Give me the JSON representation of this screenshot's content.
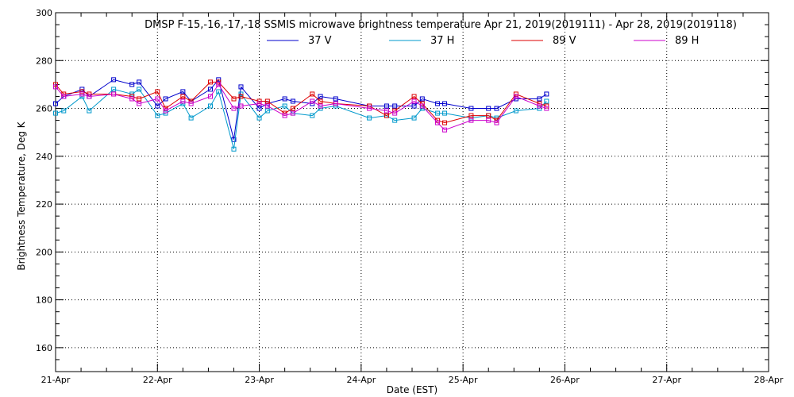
{
  "chart_data": {
    "type": "line",
    "title": "DMSP F-15,-16,-17,-18 SSMIS microwave brightness temperature Apr 21, 2019(2019111) - Apr 28, 2019(2019118)",
    "xlabel": "Date (EST)",
    "ylabel": "Brightness Temperature, Deg K",
    "ylim": [
      150,
      300
    ],
    "xlim": [
      0,
      7
    ],
    "grid": true,
    "legend_position": "top-center",
    "x_ticks": [
      {
        "value": 0,
        "label": "21-Apr"
      },
      {
        "value": 1,
        "label": "22-Apr"
      },
      {
        "value": 2,
        "label": "23-Apr"
      },
      {
        "value": 3,
        "label": "24-Apr"
      },
      {
        "value": 4,
        "label": "25-Apr"
      },
      {
        "value": 5,
        "label": "26-Apr"
      },
      {
        "value": 6,
        "label": "27-Apr"
      },
      {
        "value": 7,
        "label": "28-Apr"
      }
    ],
    "y_ticks": [
      {
        "value": 160,
        "label": "160"
      },
      {
        "value": 180,
        "label": "180"
      },
      {
        "value": 200,
        "label": "200"
      },
      {
        "value": 220,
        "label": "220"
      },
      {
        "value": 240,
        "label": "240"
      },
      {
        "value": 260,
        "label": "260"
      },
      {
        "value": 280,
        "label": "280"
      },
      {
        "value": 300,
        "label": "300"
      }
    ],
    "series": [
      {
        "name": "37 V",
        "color": "#0000cc",
        "points": [
          [
            0.0,
            262
          ],
          [
            0.08,
            265
          ],
          [
            0.26,
            268
          ],
          [
            0.33,
            265
          ],
          [
            0.57,
            272
          ],
          [
            0.75,
            270
          ],
          [
            0.82,
            271
          ],
          [
            1.0,
            261
          ],
          [
            1.08,
            264
          ],
          [
            1.25,
            267
          ],
          [
            1.33,
            263
          ],
          [
            1.52,
            268
          ],
          [
            1.6,
            272
          ],
          [
            1.75,
            247
          ],
          [
            1.82,
            269
          ],
          [
            2.0,
            260
          ],
          [
            2.08,
            262
          ],
          [
            2.25,
            264
          ],
          [
            2.33,
            263
          ],
          [
            2.52,
            262
          ],
          [
            2.6,
            265
          ],
          [
            2.75,
            264
          ],
          [
            3.08,
            261
          ],
          [
            3.25,
            261
          ],
          [
            3.33,
            261
          ],
          [
            3.52,
            261
          ],
          [
            3.6,
            264
          ],
          [
            3.75,
            262
          ],
          [
            3.82,
            262
          ],
          [
            4.08,
            260
          ],
          [
            4.25,
            260
          ],
          [
            4.33,
            260
          ],
          [
            4.52,
            264
          ],
          [
            4.75,
            264
          ],
          [
            4.82,
            266
          ]
        ]
      },
      {
        "name": "37 H",
        "color": "#0099cc",
        "points": [
          [
            0.0,
            258
          ],
          [
            0.08,
            259
          ],
          [
            0.26,
            265
          ],
          [
            0.33,
            259
          ],
          [
            0.57,
            268
          ],
          [
            0.75,
            266
          ],
          [
            0.82,
            268
          ],
          [
            1.0,
            257
          ],
          [
            1.08,
            258
          ],
          [
            1.25,
            262
          ],
          [
            1.33,
            256
          ],
          [
            1.52,
            261
          ],
          [
            1.6,
            267
          ],
          [
            1.75,
            243
          ],
          [
            1.82,
            266
          ],
          [
            2.0,
            256
          ],
          [
            2.08,
            259
          ],
          [
            2.25,
            261
          ],
          [
            2.33,
            258
          ],
          [
            2.52,
            257
          ],
          [
            2.6,
            260
          ],
          [
            2.75,
            261
          ],
          [
            3.08,
            256
          ],
          [
            3.25,
            257
          ],
          [
            3.33,
            255
          ],
          [
            3.52,
            256
          ],
          [
            3.6,
            260
          ],
          [
            3.75,
            258
          ],
          [
            3.82,
            258
          ],
          [
            4.08,
            256
          ],
          [
            4.25,
            257
          ],
          [
            4.33,
            256
          ],
          [
            4.52,
            259
          ],
          [
            4.75,
            260
          ],
          [
            4.82,
            263
          ]
        ]
      },
      {
        "name": "89 V",
        "color": "#dd0000",
        "points": [
          [
            0.0,
            270
          ],
          [
            0.08,
            266
          ],
          [
            0.26,
            267
          ],
          [
            0.33,
            266
          ],
          [
            0.57,
            266
          ],
          [
            0.75,
            265
          ],
          [
            0.82,
            264
          ],
          [
            1.0,
            267
          ],
          [
            1.08,
            260
          ],
          [
            1.25,
            265
          ],
          [
            1.33,
            263
          ],
          [
            1.52,
            271
          ],
          [
            1.6,
            271
          ],
          [
            1.75,
            264
          ],
          [
            1.82,
            265
          ],
          [
            2.0,
            263
          ],
          [
            2.08,
            263
          ],
          [
            2.25,
            258
          ],
          [
            2.33,
            260
          ],
          [
            2.52,
            266
          ],
          [
            2.6,
            263
          ],
          [
            2.75,
            262
          ],
          [
            3.08,
            261
          ],
          [
            3.25,
            257
          ],
          [
            3.33,
            259
          ],
          [
            3.52,
            265
          ],
          [
            3.6,
            262
          ],
          [
            3.75,
            255
          ],
          [
            3.82,
            254
          ],
          [
            4.08,
            257
          ],
          [
            4.25,
            257
          ],
          [
            4.33,
            255
          ],
          [
            4.52,
            266
          ],
          [
            4.75,
            262
          ],
          [
            4.82,
            261
          ]
        ]
      },
      {
        "name": "89 H",
        "color": "#cc00cc",
        "points": [
          [
            0.0,
            269
          ],
          [
            0.08,
            265
          ],
          [
            0.26,
            266
          ],
          [
            0.33,
            265
          ],
          [
            0.57,
            266
          ],
          [
            0.75,
            264
          ],
          [
            0.82,
            262
          ],
          [
            1.0,
            264
          ],
          [
            1.08,
            259
          ],
          [
            1.25,
            263
          ],
          [
            1.33,
            262
          ],
          [
            1.52,
            265
          ],
          [
            1.6,
            270
          ],
          [
            1.75,
            260
          ],
          [
            1.82,
            261
          ],
          [
            2.0,
            262
          ],
          [
            2.08,
            261
          ],
          [
            2.25,
            257
          ],
          [
            2.33,
            258
          ],
          [
            2.52,
            263
          ],
          [
            2.6,
            261
          ],
          [
            2.75,
            262
          ],
          [
            3.08,
            260
          ],
          [
            3.25,
            259
          ],
          [
            3.33,
            258
          ],
          [
            3.52,
            263
          ],
          [
            3.6,
            261
          ],
          [
            3.75,
            254
          ],
          [
            3.82,
            251
          ],
          [
            4.08,
            255
          ],
          [
            4.25,
            255
          ],
          [
            4.33,
            254
          ],
          [
            4.52,
            265
          ],
          [
            4.75,
            261
          ],
          [
            4.82,
            260
          ]
        ]
      }
    ]
  }
}
